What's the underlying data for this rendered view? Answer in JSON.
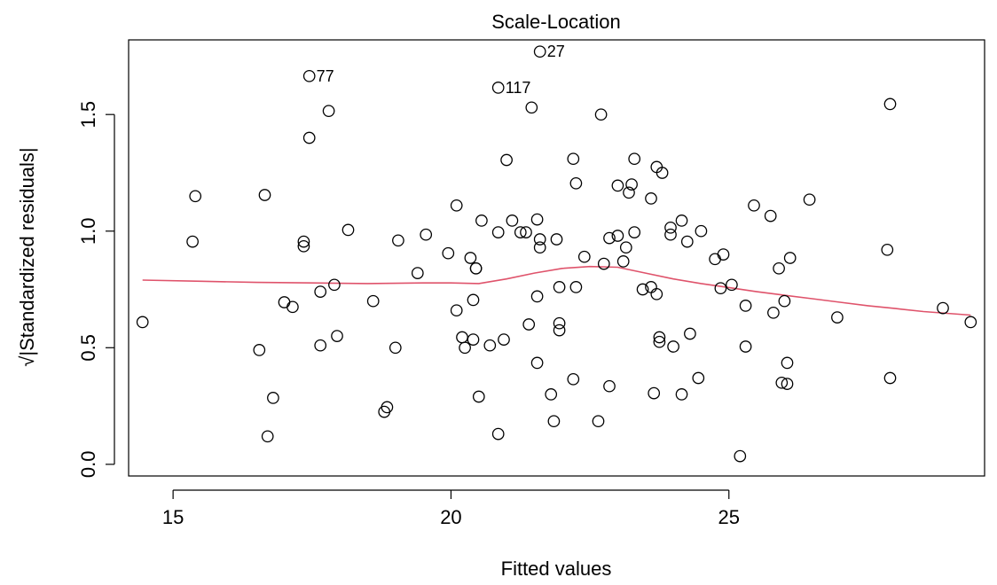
{
  "chart_data": {
    "type": "scatter",
    "title": "Scale-Location",
    "xlabel": "Fitted values",
    "ylabel": "√|Standardized residuals|",
    "xlim": [
      14.2,
      29.6
    ],
    "ylim": [
      -0.05,
      1.82
    ],
    "x_ticks": [
      15,
      20,
      25
    ],
    "y_ticks": [
      0.0,
      0.5,
      1.0,
      1.5
    ],
    "y_tick_labels": [
      "0.0",
      "0.5",
      "1.0",
      "1.5"
    ],
    "grid": false,
    "colors": {
      "points": "#000000",
      "smooth": "#df536b",
      "axes": "#000000"
    },
    "annotations": [
      {
        "label": "27",
        "x": 21.6,
        "y": 1.77
      },
      {
        "label": "77",
        "x": 17.45,
        "y": 1.665
      },
      {
        "label": "117",
        "x": 20.85,
        "y": 1.615
      }
    ],
    "points": [
      [
        14.45,
        0.61
      ],
      [
        15.35,
        0.955
      ],
      [
        15.4,
        1.15
      ],
      [
        16.55,
        0.49
      ],
      [
        16.65,
        1.155
      ],
      [
        16.7,
        0.12
      ],
      [
        16.8,
        0.285
      ],
      [
        17.0,
        0.695
      ],
      [
        17.15,
        0.675
      ],
      [
        17.35,
        0.935
      ],
      [
        17.35,
        0.955
      ],
      [
        17.45,
        1.665
      ],
      [
        17.45,
        1.4
      ],
      [
        17.65,
        0.74
      ],
      [
        17.65,
        0.51
      ],
      [
        17.8,
        1.515
      ],
      [
        17.9,
        0.77
      ],
      [
        17.95,
        0.55
      ],
      [
        18.15,
        1.005
      ],
      [
        18.6,
        0.7
      ],
      [
        18.8,
        0.225
      ],
      [
        18.85,
        0.245
      ],
      [
        19.0,
        0.5
      ],
      [
        19.05,
        0.96
      ],
      [
        19.4,
        0.82
      ],
      [
        19.55,
        0.985
      ],
      [
        19.95,
        0.905
      ],
      [
        20.1,
        1.11
      ],
      [
        20.1,
        0.66
      ],
      [
        20.2,
        0.545
      ],
      [
        20.25,
        0.5
      ],
      [
        20.35,
        0.885
      ],
      [
        20.4,
        0.535
      ],
      [
        20.4,
        0.705
      ],
      [
        20.45,
        0.84
      ],
      [
        20.45,
        0.84
      ],
      [
        20.5,
        0.29
      ],
      [
        20.55,
        1.045
      ],
      [
        20.7,
        0.51
      ],
      [
        20.85,
        0.995
      ],
      [
        20.85,
        1.615
      ],
      [
        20.85,
        0.13
      ],
      [
        20.95,
        0.535
      ],
      [
        21.0,
        1.305
      ],
      [
        21.1,
        1.045
      ],
      [
        21.25,
        0.995
      ],
      [
        21.35,
        0.995
      ],
      [
        21.4,
        0.6
      ],
      [
        21.45,
        1.53
      ],
      [
        21.55,
        1.05
      ],
      [
        21.55,
        0.72
      ],
      [
        21.55,
        0.435
      ],
      [
        21.6,
        0.965
      ],
      [
        21.6,
        0.93
      ],
      [
        21.6,
        1.77
      ],
      [
        21.8,
        0.3
      ],
      [
        21.85,
        0.185
      ],
      [
        21.9,
        0.965
      ],
      [
        21.95,
        0.605
      ],
      [
        21.95,
        0.575
      ],
      [
        21.95,
        0.76
      ],
      [
        22.2,
        0.365
      ],
      [
        22.2,
        1.31
      ],
      [
        22.25,
        1.205
      ],
      [
        22.25,
        0.76
      ],
      [
        22.4,
        0.89
      ],
      [
        22.65,
        0.185
      ],
      [
        22.7,
        1.5
      ],
      [
        22.75,
        0.86
      ],
      [
        22.85,
        0.97
      ],
      [
        22.85,
        0.335
      ],
      [
        23.0,
        0.98
      ],
      [
        23.0,
        1.195
      ],
      [
        23.1,
        0.87
      ],
      [
        23.15,
        0.93
      ],
      [
        23.2,
        1.165
      ],
      [
        23.25,
        1.2
      ],
      [
        23.3,
        0.995
      ],
      [
        23.3,
        1.31
      ],
      [
        23.45,
        0.75
      ],
      [
        23.6,
        0.76
      ],
      [
        23.6,
        1.14
      ],
      [
        23.65,
        0.305
      ],
      [
        23.7,
        0.73
      ],
      [
        23.7,
        1.275
      ],
      [
        23.75,
        0.525
      ],
      [
        23.75,
        0.545
      ],
      [
        23.8,
        1.25
      ],
      [
        23.95,
        0.985
      ],
      [
        23.95,
        1.015
      ],
      [
        24.0,
        0.505
      ],
      [
        24.15,
        0.3
      ],
      [
        24.15,
        1.045
      ],
      [
        24.25,
        0.955
      ],
      [
        24.3,
        0.56
      ],
      [
        24.45,
        0.37
      ],
      [
        24.5,
        1.0
      ],
      [
        24.75,
        0.88
      ],
      [
        24.85,
        0.755
      ],
      [
        24.9,
        0.9
      ],
      [
        25.05,
        0.77
      ],
      [
        25.2,
        0.035
      ],
      [
        25.3,
        0.68
      ],
      [
        25.3,
        0.505
      ],
      [
        25.45,
        1.11
      ],
      [
        25.75,
        1.065
      ],
      [
        25.8,
        0.65
      ],
      [
        25.9,
        0.84
      ],
      [
        25.95,
        0.35
      ],
      [
        26.0,
        0.7
      ],
      [
        26.05,
        0.435
      ],
      [
        26.05,
        0.345
      ],
      [
        26.1,
        0.885
      ],
      [
        26.45,
        1.135
      ],
      [
        26.95,
        0.63
      ],
      [
        27.85,
        0.92
      ],
      [
        27.9,
        1.545
      ],
      [
        27.9,
        0.37
      ],
      [
        28.85,
        0.67
      ],
      [
        29.35,
        0.61
      ]
    ],
    "smooth": [
      [
        14.45,
        0.79
      ],
      [
        15.5,
        0.785
      ],
      [
        16.5,
        0.78
      ],
      [
        17.5,
        0.778
      ],
      [
        18.5,
        0.775
      ],
      [
        19.5,
        0.778
      ],
      [
        20.0,
        0.778
      ],
      [
        20.5,
        0.775
      ],
      [
        21.0,
        0.795
      ],
      [
        21.5,
        0.82
      ],
      [
        22.0,
        0.84
      ],
      [
        22.5,
        0.848
      ],
      [
        23.0,
        0.845
      ],
      [
        23.5,
        0.82
      ],
      [
        24.0,
        0.795
      ],
      [
        24.5,
        0.775
      ],
      [
        25.0,
        0.758
      ],
      [
        25.5,
        0.74
      ],
      [
        26.0,
        0.725
      ],
      [
        26.5,
        0.71
      ],
      [
        27.0,
        0.695
      ],
      [
        27.5,
        0.68
      ],
      [
        28.0,
        0.668
      ],
      [
        28.5,
        0.655
      ],
      [
        29.35,
        0.64
      ]
    ]
  }
}
